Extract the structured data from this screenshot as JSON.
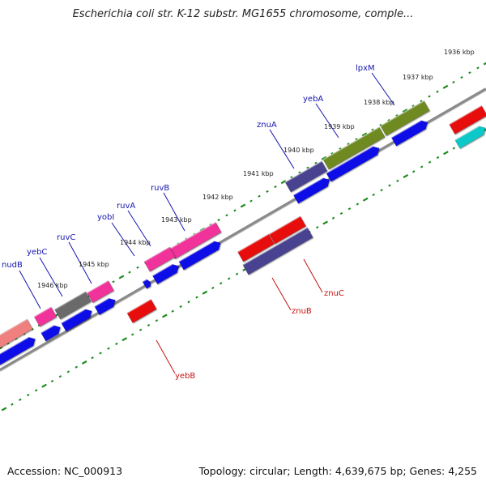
{
  "title": "Escherichia coli str. K-12 substr. MG1655 chromosome, comple...",
  "footer": {
    "accession": "Accession: NC_000913",
    "topology": "Topology: circular; Length: 4,639,675 bp; Genes: 4,255"
  },
  "kbp_ticks": [
    {
      "label": "1936 kbp",
      "pos": 1936
    },
    {
      "label": "1937 kbp",
      "pos": 1937
    },
    {
      "label": "1938 kbp",
      "pos": 1938
    },
    {
      "label": "1939 kbp",
      "pos": 1939
    },
    {
      "label": "1940 kbp",
      "pos": 1940
    },
    {
      "label": "1941 kbp",
      "pos": 1941
    },
    {
      "label": "1942 kbp",
      "pos": 1942
    },
    {
      "label": "1943 kbp",
      "pos": 1943
    },
    {
      "label": "1944 kbp",
      "pos": 1944
    },
    {
      "label": "1945 kbp",
      "pos": 1945
    },
    {
      "label": "1946 kbp",
      "pos": 1946
    }
  ],
  "gene_labels_forward": [
    {
      "name": "lpxM"
    },
    {
      "name": "yebA"
    },
    {
      "name": "znuA"
    },
    {
      "name": "ruvB"
    },
    {
      "name": "ruvA"
    },
    {
      "name": "yobI"
    },
    {
      "name": "ruvC"
    },
    {
      "name": "yebC"
    },
    {
      "name": "nudB"
    }
  ],
  "gene_labels_reverse": [
    {
      "name": "znuC"
    },
    {
      "name": "znuB"
    },
    {
      "name": "yebB"
    }
  ],
  "colors": {
    "backbone": "#8a8a8a",
    "cds": "#1010e8",
    "cds_reverse": "#e81010",
    "tick": "#1a8a1a",
    "label_forward": "#1515b0",
    "label_reverse": "#c41414",
    "feature_olive": "#6f8a20",
    "feature_slate": "#4a4290",
    "feature_pink": "#f0309a",
    "feature_gray": "#6a6a6a",
    "feature_salmon": "#f08080",
    "feature_cyan": "#10c8c8"
  }
}
